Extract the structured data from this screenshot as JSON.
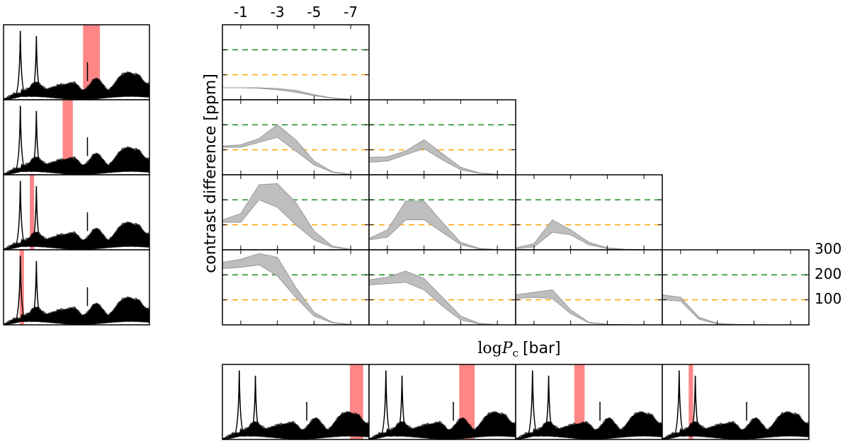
{
  "chart_data": {
    "type": "area",
    "grid": false,
    "xlabel_prefix": "log",
    "xlabel_var": "P",
    "xlabel_sub": "c",
    "xlabel_unit": "[bar]",
    "ylabel": "contrast difference [ppm]",
    "x_ticks": [
      -1,
      -3,
      -5,
      -7
    ],
    "x_tick_labels": [
      "-1",
      "-3",
      "-5",
      "-7"
    ],
    "xlim": [
      0,
      -8
    ],
    "y_ticks": [
      100,
      200,
      300
    ],
    "y_tick_labels": [
      "100",
      "200",
      "300"
    ],
    "ylim": [
      0,
      300
    ],
    "reference_lines": [
      {
        "y": 200,
        "color": "#1a8a1a"
      },
      {
        "y": 100,
        "color": "#ffa500"
      }
    ],
    "band_fill": "#bebebe",
    "band_edge": "#999999",
    "panels": [
      {
        "row": 0,
        "col": 0,
        "x": [
          0,
          -1,
          -2,
          -3,
          -4,
          -5,
          -6,
          -7
        ],
        "upper": [
          48,
          48,
          48,
          45,
          38,
          20,
          8,
          2
        ],
        "lower": [
          48,
          48,
          46,
          40,
          30,
          16,
          6,
          1
        ]
      },
      {
        "row": 1,
        "col": 0,
        "x": [
          0,
          -1,
          -2,
          -3,
          -4,
          -5,
          -6,
          -7
        ],
        "upper": [
          115,
          120,
          145,
          200,
          140,
          55,
          12,
          2
        ],
        "lower": [
          110,
          110,
          130,
          150,
          95,
          40,
          10,
          1
        ]
      },
      {
        "row": 1,
        "col": 1,
        "x": [
          0,
          -1,
          -2,
          -3,
          -4,
          -5,
          -6,
          -7
        ],
        "upper": [
          70,
          72,
          95,
          140,
          85,
          30,
          8,
          2
        ],
        "lower": [
          50,
          55,
          80,
          105,
          60,
          20,
          6,
          1
        ]
      },
      {
        "row": 2,
        "col": 0,
        "x": [
          0,
          -1,
          -2,
          -3,
          -4,
          -5,
          -6,
          -7
        ],
        "upper": [
          120,
          145,
          260,
          265,
          190,
          75,
          15,
          2
        ],
        "lower": [
          110,
          110,
          200,
          170,
          100,
          40,
          10,
          1
        ]
      },
      {
        "row": 2,
        "col": 1,
        "x": [
          0,
          -1,
          -2,
          -3,
          -4,
          -5,
          -6,
          -7
        ],
        "upper": [
          45,
          80,
          195,
          195,
          110,
          30,
          6,
          1
        ],
        "lower": [
          40,
          50,
          120,
          120,
          70,
          20,
          4,
          1
        ]
      },
      {
        "row": 2,
        "col": 2,
        "x": [
          0,
          -1,
          -2,
          -3,
          -4,
          -5,
          -6,
          -7
        ],
        "upper": [
          8,
          25,
          120,
          80,
          30,
          8,
          2,
          1
        ],
        "lower": [
          4,
          12,
          70,
          60,
          20,
          5,
          1,
          0
        ]
      },
      {
        "row": 3,
        "col": 0,
        "x": [
          0,
          -1,
          -2,
          -3,
          -4,
          -5,
          -6,
          -7
        ],
        "upper": [
          250,
          262,
          285,
          270,
          150,
          50,
          10,
          2
        ],
        "lower": [
          225,
          230,
          240,
          195,
          110,
          35,
          8,
          1
        ]
      },
      {
        "row": 3,
        "col": 1,
        "x": [
          0,
          -1,
          -2,
          -3,
          -4,
          -5,
          -6,
          -7
        ],
        "upper": [
          180,
          190,
          215,
          185,
          110,
          35,
          6,
          1
        ],
        "lower": [
          160,
          165,
          170,
          140,
          75,
          20,
          4,
          1
        ]
      },
      {
        "row": 3,
        "col": 2,
        "x": [
          0,
          -1,
          -2,
          -3,
          -4,
          -5,
          -6,
          -7
        ],
        "upper": [
          120,
          130,
          140,
          60,
          10,
          2,
          1,
          0
        ],
        "lower": [
          105,
          110,
          105,
          45,
          8,
          2,
          1,
          0
        ]
      },
      {
        "row": 3,
        "col": 3,
        "x": [
          0,
          -1,
          -2,
          -3,
          -4,
          -5,
          -6,
          -7
        ],
        "upper": [
          120,
          110,
          30,
          6,
          2,
          1,
          0,
          0
        ],
        "lower": [
          100,
          95,
          22,
          4,
          1,
          1,
          0,
          0
        ]
      }
    ],
    "spectra": {
      "left": [
        {
          "band": [
            0.545,
            0.66
          ]
        },
        {
          "band": [
            0.405,
            0.475
          ]
        },
        {
          "band": [
            0.18,
            0.21
          ]
        },
        {
          "band": [
            0.11,
            0.14
          ]
        }
      ],
      "bottom": [
        {
          "band": [
            0.87,
            0.96
          ]
        },
        {
          "band": [
            0.615,
            0.72
          ]
        },
        {
          "band": [
            0.4,
            0.47
          ]
        },
        {
          "band": [
            0.18,
            0.21
          ]
        }
      ],
      "band_color": "#ff7f7f"
    }
  }
}
